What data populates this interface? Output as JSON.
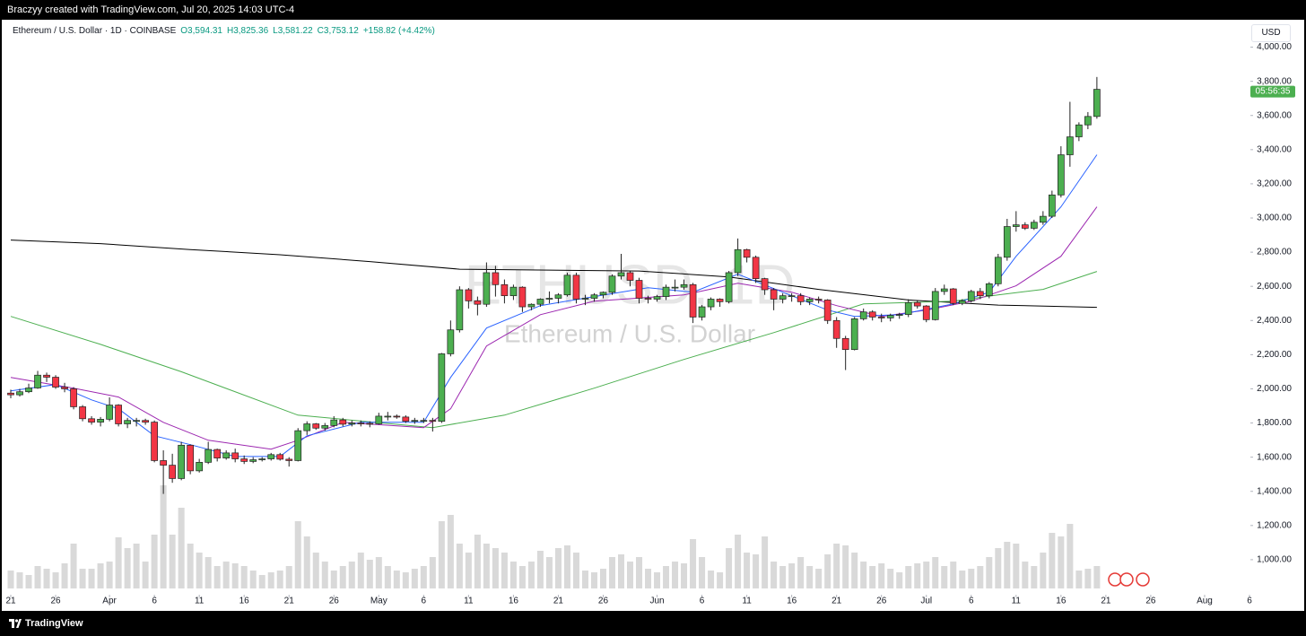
{
  "header": {
    "attribution": "Braczyy created with TradingView.com, Jul 20, 2025 14:03 UTC-4",
    "logo": "TradingView"
  },
  "chart_data": {
    "type": "candlestick",
    "title": "Ethereum / U.S. Dollar · 1D · COINBASE",
    "legend_values": [
      "O3,594.31",
      "H3,825.36",
      "L3,581.22",
      "C3,753.12",
      "+158.82 (+4.42%)"
    ],
    "watermark": [
      "ETHUSD, 1D",
      "Ethereum / U.S. Dollar"
    ],
    "currency": "USD",
    "countdown": "05:56:35",
    "up_color": "#4caf50",
    "down_color": "#f23645",
    "volume_color": "#d9d9d9",
    "open": [
      1975,
      1965,
      1983,
      2005,
      2080,
      2068,
      2010,
      2000,
      1895,
      1825,
      1805,
      1822,
      1905,
      1795,
      1815,
      1815,
      1805,
      1580,
      1553,
      1475,
      1670,
      1520,
      1570,
      1645,
      1595,
      1625,
      1590,
      1575,
      1585,
      1590,
      1615,
      1588,
      1580,
      1755,
      1795,
      1770,
      1785,
      1818,
      1793,
      1800,
      1798,
      1795,
      1840,
      1840,
      1835,
      1810,
      1815,
      1815,
      1810,
      2205,
      2345,
      2580,
      2515,
      2495,
      2680,
      2610,
      2545,
      2595,
      2480,
      2495,
      2525,
      2530,
      2550,
      2665,
      2525,
      2530,
      2550,
      2565,
      2660,
      2680,
      2635,
      2530,
      2525,
      2540,
      2595,
      2595,
      2610,
      2420,
      2480,
      2525,
      2510,
      2680,
      2815,
      2770,
      2645,
      2580,
      2525,
      2545,
      2545,
      2510,
      2525,
      2520,
      2400,
      2295,
      2230,
      2410,
      2450,
      2420,
      2415,
      2430,
      2435,
      2505,
      2485,
      2405,
      2570,
      2585,
      2500,
      2515,
      2570,
      2545,
      2615,
      2770,
      2950,
      2960,
      2940,
      2975,
      3010,
      3135,
      3370,
      3475,
      3545,
      3594.31
    ],
    "high": [
      1995,
      2000,
      2030,
      2105,
      2095,
      2080,
      2035,
      2010,
      1905,
      1840,
      1835,
      1950,
      1910,
      1830,
      1830,
      1825,
      1815,
      1640,
      1620,
      1690,
      1675,
      1590,
      1690,
      1650,
      1640,
      1650,
      1610,
      1600,
      1600,
      1625,
      1625,
      1600,
      1770,
      1810,
      1800,
      1800,
      1840,
      1830,
      1815,
      1815,
      1810,
      1860,
      1865,
      1850,
      1845,
      1830,
      1830,
      1830,
      2210,
      2400,
      2600,
      2590,
      2540,
      2740,
      2720,
      2640,
      2610,
      2600,
      2500,
      2530,
      2570,
      2560,
      2680,
      2680,
      2550,
      2560,
      2570,
      2670,
      2790,
      2690,
      2650,
      2545,
      2550,
      2610,
      2640,
      2640,
      2620,
      2490,
      2535,
      2530,
      2690,
      2880,
      2820,
      2780,
      2650,
      2590,
      2560,
      2560,
      2560,
      2535,
      2540,
      2525,
      2420,
      2310,
      2420,
      2470,
      2460,
      2440,
      2440,
      2445,
      2525,
      2515,
      2490,
      2590,
      2610,
      2590,
      2525,
      2580,
      2590,
      2625,
      2790,
      2995,
      3040,
      2975,
      2990,
      3040,
      3160,
      3420,
      3680,
      3560,
      3620,
      3825.36
    ],
    "low": [
      1945,
      1955,
      1975,
      2000,
      2040,
      2000,
      1980,
      1880,
      1810,
      1790,
      1780,
      1810,
      1780,
      1770,
      1780,
      1790,
      1570,
      1385,
      1450,
      1465,
      1500,
      1510,
      1560,
      1575,
      1585,
      1570,
      1560,
      1565,
      1575,
      1580,
      1580,
      1545,
      1575,
      1730,
      1760,
      1755,
      1775,
      1780,
      1780,
      1780,
      1775,
      1790,
      1815,
      1825,
      1800,
      1795,
      1800,
      1750,
      1800,
      2190,
      2330,
      2470,
      2430,
      2480,
      2540,
      2500,
      2520,
      2450,
      2460,
      2480,
      2500,
      2500,
      2540,
      2500,
      2490,
      2510,
      2530,
      2550,
      2640,
      2600,
      2500,
      2500,
      2510,
      2520,
      2570,
      2580,
      2385,
      2400,
      2460,
      2480,
      2500,
      2660,
      2740,
      2620,
      2550,
      2460,
      2500,
      2510,
      2490,
      2490,
      2500,
      2380,
      2240,
      2110,
      2225,
      2400,
      2400,
      2390,
      2395,
      2410,
      2420,
      2470,
      2390,
      2400,
      2550,
      2490,
      2490,
      2505,
      2525,
      2530,
      2600,
      2750,
      2920,
      2930,
      2930,
      2960,
      3000,
      3120,
      3300,
      3450,
      3520,
      3581.22
    ],
    "close": [
      1965,
      1983,
      2005,
      2080,
      2068,
      2010,
      2000,
      1895,
      1825,
      1805,
      1822,
      1905,
      1795,
      1815,
      1815,
      1805,
      1580,
      1553,
      1475,
      1670,
      1520,
      1570,
      1645,
      1595,
      1625,
      1590,
      1575,
      1585,
      1590,
      1615,
      1588,
      1580,
      1755,
      1795,
      1770,
      1785,
      1818,
      1793,
      1800,
      1798,
      1795,
      1840,
      1840,
      1835,
      1810,
      1815,
      1815,
      1810,
      2205,
      2345,
      2580,
      2515,
      2495,
      2680,
      2610,
      2545,
      2595,
      2480,
      2495,
      2525,
      2530,
      2550,
      2665,
      2525,
      2530,
      2550,
      2565,
      2660,
      2680,
      2635,
      2530,
      2525,
      2540,
      2595,
      2595,
      2610,
      2420,
      2480,
      2525,
      2510,
      2680,
      2815,
      2770,
      2645,
      2580,
      2525,
      2545,
      2545,
      2510,
      2525,
      2520,
      2400,
      2295,
      2230,
      2410,
      2450,
      2420,
      2415,
      2430,
      2435,
      2505,
      2485,
      2405,
      2570,
      2585,
      2500,
      2515,
      2570,
      2545,
      2615,
      2770,
      2950,
      2960,
      2940,
      2975,
      3010,
      3135,
      3370,
      3475,
      3545,
      3594.31,
      3753.12
    ],
    "volume": [
      200000,
      180000,
      150000,
      250000,
      220000,
      180000,
      280000,
      500000,
      220000,
      220000,
      280000,
      300000,
      570000,
      450000,
      500000,
      300000,
      600000,
      1150000,
      600000,
      900000,
      500000,
      400000,
      350000,
      250000,
      300000,
      280000,
      250000,
      200000,
      150000,
      180000,
      200000,
      250000,
      750000,
      580000,
      400000,
      300000,
      200000,
      250000,
      300000,
      400000,
      320000,
      350000,
      250000,
      200000,
      180000,
      220000,
      250000,
      350000,
      750000,
      820000,
      500000,
      400000,
      600000,
      500000,
      450000,
      400000,
      300000,
      250000,
      300000,
      420000,
      350000,
      450000,
      480000,
      400000,
      200000,
      180000,
      220000,
      350000,
      380000,
      300000,
      350000,
      220000,
      180000,
      250000,
      300000,
      280000,
      550000,
      350000,
      200000,
      180000,
      450000,
      600000,
      400000,
      380000,
      580000,
      300000,
      250000,
      280000,
      350000,
      250000,
      220000,
      380000,
      500000,
      480000,
      400000,
      300000,
      250000,
      280000,
      220000,
      180000,
      250000,
      280000,
      300000,
      350000,
      250000,
      300000,
      200000,
      220000,
      250000,
      350000,
      450000,
      520000,
      500000,
      300000,
      250000,
      400000,
      620000,
      580000,
      720000,
      200000,
      220000,
      250000
    ],
    "lines": [
      {
        "color": "#000000",
        "x": [
          0,
          10,
          20,
          30,
          40,
          50,
          60,
          70,
          80,
          90,
          100,
          110,
          121
        ],
        "values": [
          2871,
          2850,
          2815,
          2785,
          2745,
          2700,
          2695,
          2690,
          2655,
          2582,
          2520,
          2490,
          2477
        ]
      },
      {
        "color": "#4caf50",
        "x": [
          0,
          10,
          19,
          32,
          47,
          55,
          65,
          75,
          85,
          95,
          105,
          110,
          115,
          121
        ],
        "values": [
          2424,
          2260,
          2100,
          1846,
          1773,
          1846,
          2004,
          2172,
          2329,
          2497,
          2513,
          2550,
          2582,
          2687
        ]
      },
      {
        "color": "#9c27b0",
        "x": [
          0,
          7,
          12,
          17,
          22,
          29,
          32,
          37,
          46,
          49,
          53,
          59,
          65,
          75,
          81,
          87,
          92,
          97,
          102,
          107,
          112,
          117,
          121
        ],
        "values": [
          2067,
          2004,
          1952,
          1804,
          1699,
          1647,
          1699,
          1804,
          1773,
          1883,
          2251,
          2434,
          2513,
          2550,
          2618,
          2566,
          2487,
          2424,
          2461,
          2513,
          2603,
          2776,
          3065
        ]
      },
      {
        "color": "#2962ff",
        "x": [
          0,
          5,
          9,
          12,
          16,
          20,
          25,
          30,
          33,
          39,
          46,
          49,
          53,
          59,
          65,
          71,
          76,
          81,
          86,
          91,
          94,
          99,
          105,
          109,
          112,
          117,
          121
        ],
        "values": [
          1988,
          2025,
          1935,
          1883,
          1725,
          1673,
          1604,
          1604,
          1725,
          1804,
          1804,
          2067,
          2356,
          2487,
          2540,
          2592,
          2566,
          2671,
          2566,
          2461,
          2424,
          2434,
          2497,
          2566,
          2776,
          3065,
          3370
        ]
      }
    ],
    "xlim": [
      -1,
      138
    ],
    "xticks": [
      {
        "value": 0,
        "label": "21"
      },
      {
        "value": 5,
        "label": "26"
      },
      {
        "value": 11,
        "label": "Apr"
      },
      {
        "value": 16,
        "label": "6"
      },
      {
        "value": 21,
        "label": "11"
      },
      {
        "value": 26,
        "label": "16"
      },
      {
        "value": 31,
        "label": "21"
      },
      {
        "value": 36,
        "label": "26"
      },
      {
        "value": 41,
        "label": "May"
      },
      {
        "value": 46,
        "label": "6"
      },
      {
        "value": 51,
        "label": "11"
      },
      {
        "value": 56,
        "label": "16"
      },
      {
        "value": 61,
        "label": "21"
      },
      {
        "value": 66,
        "label": "26"
      },
      {
        "value": 72,
        "label": "Jun"
      },
      {
        "value": 77,
        "label": "6"
      },
      {
        "value": 82,
        "label": "11"
      },
      {
        "value": 87,
        "label": "16"
      },
      {
        "value": 92,
        "label": "21"
      },
      {
        "value": 97,
        "label": "26"
      },
      {
        "value": 102,
        "label": "Jul"
      },
      {
        "value": 107,
        "label": "6"
      },
      {
        "value": 112,
        "label": "11"
      },
      {
        "value": 117,
        "label": "16"
      },
      {
        "value": 122,
        "label": "21"
      },
      {
        "value": 127,
        "label": "26"
      },
      {
        "value": 133,
        "label": "Aug"
      },
      {
        "value": 138,
        "label": "6"
      }
    ],
    "ylim": [
      800,
      4150
    ],
    "yticks": [
      {
        "value": 1000,
        "label": "1,000.00"
      },
      {
        "value": 1200,
        "label": "1,200.00"
      },
      {
        "value": 1400,
        "label": "1,400.00"
      },
      {
        "value": 1600,
        "label": "1,600.00"
      },
      {
        "value": 1800,
        "label": "1,800.00"
      },
      {
        "value": 2000,
        "label": "2,000.00"
      },
      {
        "value": 2200,
        "label": "2,200.00"
      },
      {
        "value": 2400,
        "label": "2,400.00"
      },
      {
        "value": 2600,
        "label": "2,600.00"
      },
      {
        "value": 2800,
        "label": "2,800.00"
      },
      {
        "value": 3000,
        "label": "3,000.00"
      },
      {
        "value": 3200,
        "label": "3,200.00"
      },
      {
        "value": 3400,
        "label": "3,400.00"
      },
      {
        "value": 3600,
        "label": "3,600.00"
      },
      {
        "value": 3800,
        "label": "3,800.00"
      },
      {
        "value": 4000,
        "label": "4,000.00"
      }
    ]
  }
}
